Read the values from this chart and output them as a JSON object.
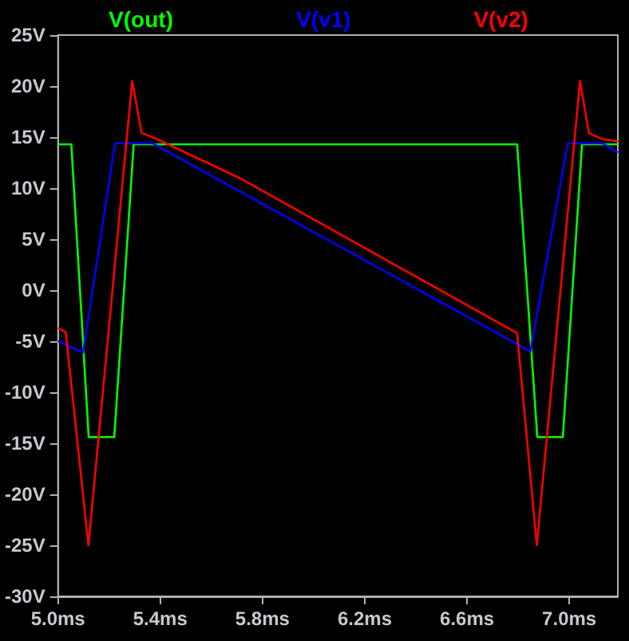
{
  "chart_data": {
    "type": "line",
    "marker": "none",
    "line_style": "solid",
    "grid": false,
    "legend": "top",
    "xlim": [
      5.0,
      7.19
    ],
    "ylim": [
      -30,
      25
    ],
    "xticks": [
      {
        "value": 5.0,
        "label": "5.0ms"
      },
      {
        "value": 5.4,
        "label": "5.4ms"
      },
      {
        "value": 5.8,
        "label": "5.8ms"
      },
      {
        "value": 6.2,
        "label": "6.2ms"
      },
      {
        "value": 6.6,
        "label": "6.6ms"
      },
      {
        "value": 7.0,
        "label": "7.0ms"
      }
    ],
    "yticks": [
      {
        "value": 25,
        "label": "25V"
      },
      {
        "value": 20,
        "label": "20V"
      },
      {
        "value": 15,
        "label": "15V"
      },
      {
        "value": 10,
        "label": "10V"
      },
      {
        "value": 5,
        "label": "5V"
      },
      {
        "value": 0,
        "label": "0V"
      },
      {
        "value": -5,
        "label": "-5V"
      },
      {
        "value": -10,
        "label": "-10V"
      },
      {
        "value": -15,
        "label": "-15V"
      },
      {
        "value": -20,
        "label": "-20V"
      },
      {
        "value": -25,
        "label": "-25V"
      },
      {
        "value": -30,
        "label": "-30V"
      }
    ],
    "series": [
      {
        "name": "V(out)",
        "color": "#00ff00",
        "x": [
          5.0,
          5.052,
          5.12,
          5.22,
          5.296,
          6.796,
          6.875,
          6.975,
          7.05,
          7.19
        ],
        "values": [
          14.3,
          14.3,
          -14.4,
          -14.4,
          14.3,
          14.3,
          -14.4,
          -14.4,
          14.3,
          14.3
        ]
      },
      {
        "name": "V(v1)",
        "color": "#0000ff",
        "x": [
          5.0,
          5.098,
          5.223,
          5.37,
          5.71,
          6.848,
          6.994,
          7.13,
          7.19
        ],
        "values": [
          -5.0,
          -6.1,
          14.4,
          14.4,
          9.7,
          -6.0,
          14.4,
          14.4,
          13.5
        ]
      },
      {
        "name": "V(v2)",
        "color": "#ff0000",
        "x": [
          5.0,
          5.03,
          5.119,
          5.29,
          5.327,
          5.379,
          5.71,
          6.796,
          6.873,
          7.042,
          7.077,
          7.13,
          7.19
        ],
        "values": [
          -3.7,
          -4.1,
          -25,
          20.5,
          15.4,
          14.9,
          11.0,
          -4.2,
          -25,
          20.5,
          15.4,
          14.8,
          14.6
        ]
      }
    ]
  }
}
